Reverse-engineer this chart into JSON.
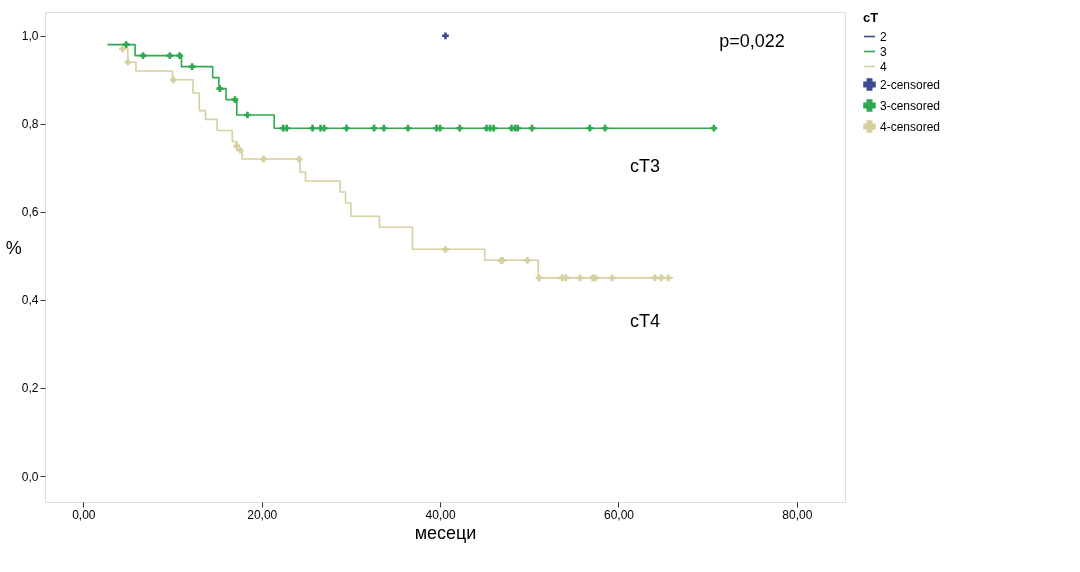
{
  "chart_data": {
    "type": "step",
    "xlabel": "месеци",
    "ylabel": "%",
    "legend_title": "cT",
    "legend": "right",
    "grid": false,
    "xlim": [
      -4.3,
      85.4
    ],
    "ylim": [
      -0.059,
      1.054
    ],
    "xticks": [
      {
        "value": 0,
        "label": "0,00"
      },
      {
        "value": 20,
        "label": "20,00"
      },
      {
        "value": 40,
        "label": "40,00"
      },
      {
        "value": 60,
        "label": "60,00"
      },
      {
        "value": 80,
        "label": "80,00"
      }
    ],
    "yticks": [
      {
        "value": 0,
        "label": "0,0"
      },
      {
        "value": 0.2,
        "label": "0,2"
      },
      {
        "value": 0.4,
        "label": "0,4"
      },
      {
        "value": 0.6,
        "label": "0,6"
      },
      {
        "value": 0.8,
        "label": "0,8"
      },
      {
        "value": 1.0,
        "label": "1,0"
      }
    ],
    "annotations": [
      "p=0,022",
      "cT3",
      "cT4"
    ],
    "series": [
      {
        "name": "2",
        "color": "#3c4a94"
      },
      {
        "name": "3",
        "color": "#2fa84f",
        "x": [
          2.7,
          5.8,
          11,
          14.5,
          15.2,
          16,
          17.2,
          21.4,
          70.7
        ],
        "values": [
          0.98,
          0.955,
          0.93,
          0.905,
          0.88,
          0.855,
          0.82,
          0.79,
          0.79
        ]
      },
      {
        "name": "4",
        "color": "#d6cfa0",
        "x": [
          4,
          5,
          5.9,
          10,
          12.3,
          13,
          13.7,
          15,
          16.7,
          17.2,
          17.8,
          24.3,
          24.9,
          28.8,
          29.4,
          30,
          33.2,
          36.9,
          45,
          51,
          66.1
        ],
        "values": [
          0.97,
          0.94,
          0.92,
          0.9,
          0.87,
          0.83,
          0.81,
          0.785,
          0.76,
          0.74,
          0.72,
          0.69,
          0.67,
          0.645,
          0.62,
          0.59,
          0.565,
          0.515,
          0.49,
          0.45,
          0.45
        ]
      },
      {
        "name": "2-censored",
        "type": "scatter",
        "marker": "cross",
        "color": "#3c4a94",
        "x": [
          40.6
        ],
        "values": [
          1.0
        ]
      },
      {
        "name": "3-censored",
        "type": "scatter",
        "marker": "cross",
        "color": "#2fa84f",
        "x": [
          4.8,
          6.7,
          9.7,
          10.8,
          12.2,
          15.3,
          17,
          18.4,
          22.4,
          22.8,
          25.7,
          26.6,
          27,
          29.5,
          32.6,
          33.7,
          36.4,
          39.6,
          40,
          42.2,
          45.2,
          45.6,
          46,
          48,
          48.4,
          48.7,
          50.3,
          56.8,
          58.5,
          70.7
        ],
        "values": [
          0.98,
          0.955,
          0.955,
          0.955,
          0.93,
          0.88,
          0.855,
          0.82,
          0.79,
          0.79,
          0.79,
          0.79,
          0.79,
          0.79,
          0.79,
          0.79,
          0.79,
          0.79,
          0.79,
          0.79,
          0.79,
          0.79,
          0.79,
          0.79,
          0.79,
          0.79,
          0.79,
          0.79,
          0.79,
          0.79
        ]
      },
      {
        "name": "4-censored",
        "type": "scatter",
        "marker": "cross",
        "color": "#d6cfa0",
        "x": [
          4.4,
          5,
          10.1,
          17.2,
          17.6,
          20.2,
          24.2,
          40.6,
          46.8,
          47,
          49.8,
          51.1,
          53.7,
          54.1,
          55.7,
          57.1,
          57.4,
          59.3,
          64.1,
          64.8,
          65.6
        ],
        "values": [
          0.97,
          0.94,
          0.9,
          0.75,
          0.74,
          0.72,
          0.72,
          0.515,
          0.49,
          0.49,
          0.49,
          0.45,
          0.45,
          0.45,
          0.45,
          0.45,
          0.45,
          0.45,
          0.45,
          0.45,
          0.45
        ]
      }
    ]
  }
}
